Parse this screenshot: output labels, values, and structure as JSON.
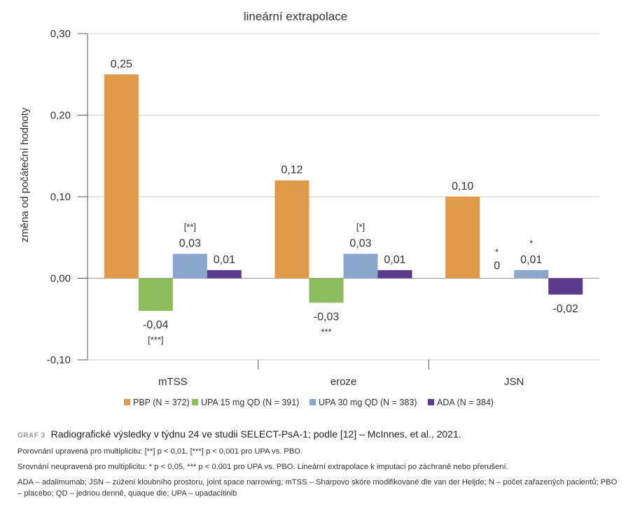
{
  "chart_data": {
    "type": "bar",
    "title": "lineární extrapolace",
    "ylabel": "změna od počáteční hodnoty",
    "xlabel": "",
    "ylim": [
      -0.1,
      0.3
    ],
    "yticks": [
      0.3,
      0.2,
      0.1,
      0.0,
      -0.1
    ],
    "ytick_labels": [
      "0,30",
      "0,20",
      "0,10",
      "0,00",
      "-0,10"
    ],
    "grid": true,
    "legend_position": "bottom",
    "categories": [
      "mTSS",
      "eroze",
      "JSN"
    ],
    "series": [
      {
        "name": "PBP (N = 372)",
        "color": "#e09a4a",
        "values": [
          0.25,
          0.12,
          0.1
        ],
        "labels": [
          "0,25",
          "0,12",
          "0,10"
        ],
        "marks": [
          "",
          "",
          ""
        ]
      },
      {
        "name": "UPA 15 mg QD (N = 391)",
        "color": "#8fbc5a",
        "values": [
          -0.04,
          -0.03,
          0
        ],
        "labels": [
          "-0,04",
          "-0,03",
          "0"
        ],
        "marks": [
          "[***]",
          "***",
          "*"
        ]
      },
      {
        "name": "UPA 30 mg QD (N = 383)",
        "color": "#8aa6cc",
        "values": [
          0.03,
          0.03,
          0.01
        ],
        "labels": [
          "0,03",
          "0,03",
          "0,01"
        ],
        "marks": [
          "[**]",
          "[*]",
          "*"
        ]
      },
      {
        "name": "ADA (N = 384)",
        "color": "#5b3c8c",
        "values": [
          0.01,
          0.01,
          -0.02
        ],
        "labels": [
          "0,01",
          "0,01",
          "-0,02"
        ],
        "marks": [
          "",
          "",
          ""
        ]
      }
    ]
  },
  "caption": {
    "graf_label": "GRAF 3",
    "title": "Radiografické výsledky v týdnu 24 ve studii SELECT-PsA-1; podle [12] – McInnes, et al., 2021.",
    "note1": "Porovnání upravená pro multiplicitu: [**] p < 0,01, [***] p < 0,001 pro UPA vs. PBO.",
    "note2": "Srovnání neupravená pro multiplicitu: * p < 0,05, *** p < 0,001 pro UPA vs. PBO. Lineární extrapolace k imputaci po záchraně nebo přerušení.",
    "note3": "ADA – adalimumab; JSN – zúžení kloubního prostoru, joint space narrowing; mTSS – Sharpovo skóre modifikované dle van der Heijde; N – počet zařazených pacientů; PBO – placebo; QD – jednou denně, quaque die; UPA – upadacitinib"
  }
}
